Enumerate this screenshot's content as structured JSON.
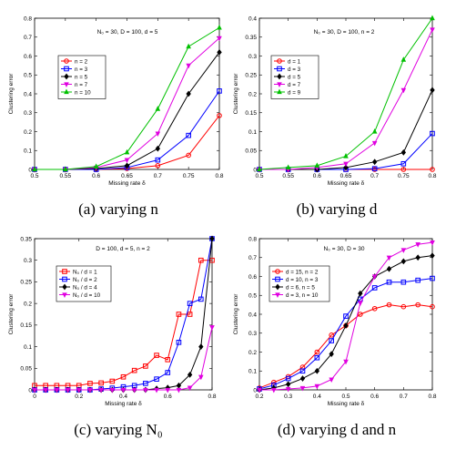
{
  "captions": [
    "(a) varying n",
    "(b) varying d",
    "(c) varying N₀",
    "(d) varying d and n"
  ],
  "chart_data": [
    {
      "type": "line",
      "title": "N₀ = 30, D = 100, d = 5",
      "xlabel": "Missing rate δ",
      "ylabel": "Clustering error",
      "xlim": [
        0.5,
        0.8
      ],
      "ylim": [
        0,
        0.8
      ],
      "xticks": [
        0.5,
        0.55,
        0.6,
        0.65,
        0.7,
        0.75,
        0.8
      ],
      "xtick_labels": [
        "0.5",
        "0.55",
        "0.6",
        "0.65",
        "0.7",
        "0.75",
        "0.8"
      ],
      "yticks": [
        0,
        0.1,
        0.2,
        0.3,
        0.4,
        0.5,
        0.6,
        0.7,
        0.8
      ],
      "ytick_labels": [
        "0",
        "0.1",
        "0.2",
        "0.3",
        "0.4",
        "0.5",
        "0.6",
        "0.7",
        "0.8"
      ],
      "legend_position": "upper-left",
      "x": [
        0.5,
        0.55,
        0.6,
        0.65,
        0.7,
        0.75,
        0.8
      ],
      "series": [
        {
          "name": "n = 2",
          "color": "#ff0000",
          "marker": "circle",
          "values": [
            0,
            0,
            0,
            0.005,
            0.02,
            0.075,
            0.285
          ]
        },
        {
          "name": "n = 3",
          "color": "#0000ff",
          "marker": "square",
          "values": [
            0,
            0,
            0,
            0.01,
            0.05,
            0.18,
            0.415
          ]
        },
        {
          "name": "n = 5",
          "color": "#000000",
          "marker": "diamond",
          "values": [
            0,
            0,
            0.005,
            0.02,
            0.11,
            0.4,
            0.62
          ]
        },
        {
          "name": "n = 7",
          "color": "#e000e0",
          "marker": "triangle-down",
          "values": [
            0,
            0,
            0.01,
            0.05,
            0.19,
            0.55,
            0.695
          ]
        },
        {
          "name": "n = 10",
          "color": "#00c000",
          "marker": "triangle-up",
          "values": [
            0,
            0,
            0.015,
            0.09,
            0.32,
            0.65,
            0.75
          ]
        }
      ]
    },
    {
      "type": "line",
      "title": "N₀ = 30, D = 100, n = 2",
      "xlabel": "Missing rate δ",
      "ylabel": "Clustering error",
      "xlim": [
        0.5,
        0.8
      ],
      "ylim": [
        0,
        0.4
      ],
      "xticks": [
        0.5,
        0.55,
        0.6,
        0.65,
        0.7,
        0.75,
        0.8
      ],
      "xtick_labels": [
        "0.5",
        "0.55",
        "0.6",
        "0.65",
        "0.7",
        "0.75",
        "0.8"
      ],
      "yticks": [
        0,
        0.05,
        0.1,
        0.15,
        0.2,
        0.25,
        0.3,
        0.35,
        0.4
      ],
      "ytick_labels": [
        "0",
        "0.05",
        "0.1",
        "0.15",
        "0.2",
        "0.25",
        "0.3",
        "0.35",
        "0.4"
      ],
      "legend_position": "upper-left",
      "x": [
        0.5,
        0.55,
        0.6,
        0.65,
        0.7,
        0.75,
        0.8
      ],
      "series": [
        {
          "name": "d = 1",
          "color": "#ff0000",
          "marker": "circle",
          "values": [
            0,
            0,
            0,
            0,
            0,
            0,
            0
          ]
        },
        {
          "name": "d = 3",
          "color": "#0000ff",
          "marker": "square",
          "values": [
            0,
            0,
            0,
            0,
            0.002,
            0.015,
            0.095
          ]
        },
        {
          "name": "d = 5",
          "color": "#000000",
          "marker": "diamond",
          "values": [
            0,
            0,
            0,
            0.005,
            0.02,
            0.045,
            0.21
          ]
        },
        {
          "name": "d = 7",
          "color": "#e000e0",
          "marker": "triangle-down",
          "values": [
            0,
            0,
            0.005,
            0.015,
            0.07,
            0.21,
            0.37
          ]
        },
        {
          "name": "d = 9",
          "color": "#00c000",
          "marker": "triangle-up",
          "values": [
            0,
            0.005,
            0.01,
            0.035,
            0.1,
            0.29,
            0.4
          ]
        }
      ]
    },
    {
      "type": "line",
      "title": "D = 100, d = 5, n = 2",
      "xlabel": "Missing rate δ",
      "ylabel": "Clustering error",
      "xlim": [
        0,
        0.8
      ],
      "ylim": [
        0,
        0.35
      ],
      "xticks": [
        0,
        0.2,
        0.4,
        0.6,
        0.8
      ],
      "xtick_labels": [
        "0",
        "0.2",
        "0.4",
        "0.6",
        "0.8"
      ],
      "yticks": [
        0,
        0.05,
        0.1,
        0.15,
        0.2,
        0.25,
        0.3,
        0.35
      ],
      "ytick_labels": [
        "0",
        "0.05",
        "0.1",
        "0.15",
        "0.2",
        "0.25",
        "0.3",
        "0.35"
      ],
      "legend_position": "upper-left",
      "x": [
        0,
        0.05,
        0.1,
        0.15,
        0.2,
        0.25,
        0.3,
        0.35,
        0.4,
        0.45,
        0.5,
        0.55,
        0.6,
        0.65,
        0.7,
        0.75,
        0.8
      ],
      "series": [
        {
          "name": "N₀ / d = 1",
          "color": "#ff0000",
          "marker": "square",
          "values": [
            0.01,
            0.01,
            0.01,
            0.01,
            0.01,
            0.015,
            0.016,
            0.02,
            0.03,
            0.045,
            0.055,
            0.08,
            0.07,
            0.175,
            0.175,
            0.3,
            0.3
          ]
        },
        {
          "name": "N₀ / d = 2",
          "color": "#0000ff",
          "marker": "square",
          "values": [
            0,
            0,
            0,
            0,
            0,
            0,
            0.002,
            0.004,
            0.007,
            0.01,
            0.015,
            0.025,
            0.04,
            0.11,
            0.2,
            0.21,
            0.35
          ]
        },
        {
          "name": "N₀ / d = 4",
          "color": "#000000",
          "marker": "diamond",
          "values": [
            0,
            0,
            0,
            0,
            0,
            0,
            0,
            0,
            0,
            0,
            0,
            0.003,
            0.005,
            0.01,
            0.035,
            0.1,
            0.35
          ]
        },
        {
          "name": "N₀ / d = 10",
          "color": "#e000e0",
          "marker": "triangle-down",
          "values": [
            0,
            0,
            0,
            0,
            0,
            0,
            0,
            0,
            0,
            0,
            0,
            0,
            0,
            0,
            0.005,
            0.03,
            0.145
          ]
        }
      ]
    },
    {
      "type": "line",
      "title": "N₀ = 30, D = 30",
      "xlabel": "Missing rate δ",
      "ylabel": "Clustering error",
      "xlim": [
        0.2,
        0.8
      ],
      "ylim": [
        0,
        0.8
      ],
      "xticks": [
        0.2,
        0.3,
        0.4,
        0.5,
        0.6,
        0.7,
        0.8
      ],
      "xtick_labels": [
        "0.2",
        "0.3",
        "0.4",
        "0.5",
        "0.6",
        "0.7",
        "0.8"
      ],
      "yticks": [
        0,
        0.1,
        0.2,
        0.3,
        0.4,
        0.5,
        0.6,
        0.7,
        0.8
      ],
      "ytick_labels": [
        "0",
        "0.1",
        "0.2",
        "0.3",
        "0.4",
        "0.5",
        "0.6",
        "0.7",
        "0.8"
      ],
      "legend_position": "upper-left",
      "x": [
        0.2,
        0.25,
        0.3,
        0.35,
        0.4,
        0.45,
        0.5,
        0.55,
        0.6,
        0.65,
        0.7,
        0.75,
        0.8
      ],
      "series": [
        {
          "name": "d = 15, n = 2",
          "color": "#ff0000",
          "marker": "circle",
          "values": [
            0.01,
            0.04,
            0.07,
            0.12,
            0.2,
            0.29,
            0.34,
            0.4,
            0.43,
            0.45,
            0.44,
            0.45,
            0.44
          ]
        },
        {
          "name": "d = 10, n = 3",
          "color": "#0000ff",
          "marker": "square",
          "values": [
            0.005,
            0.025,
            0.06,
            0.1,
            0.17,
            0.26,
            0.39,
            0.48,
            0.54,
            0.57,
            0.57,
            0.58,
            0.59
          ]
        },
        {
          "name": "d = 6, n = 5",
          "color": "#000000",
          "marker": "diamond",
          "values": [
            0,
            0.01,
            0.03,
            0.06,
            0.1,
            0.19,
            0.34,
            0.51,
            0.6,
            0.64,
            0.68,
            0.7,
            0.71
          ]
        },
        {
          "name": "d = 3, n = 10",
          "color": "#e000e0",
          "marker": "triangle-down",
          "values": [
            0,
            0,
            0.005,
            0.01,
            0.02,
            0.055,
            0.15,
            0.46,
            0.6,
            0.7,
            0.74,
            0.77,
            0.78
          ]
        }
      ]
    }
  ]
}
